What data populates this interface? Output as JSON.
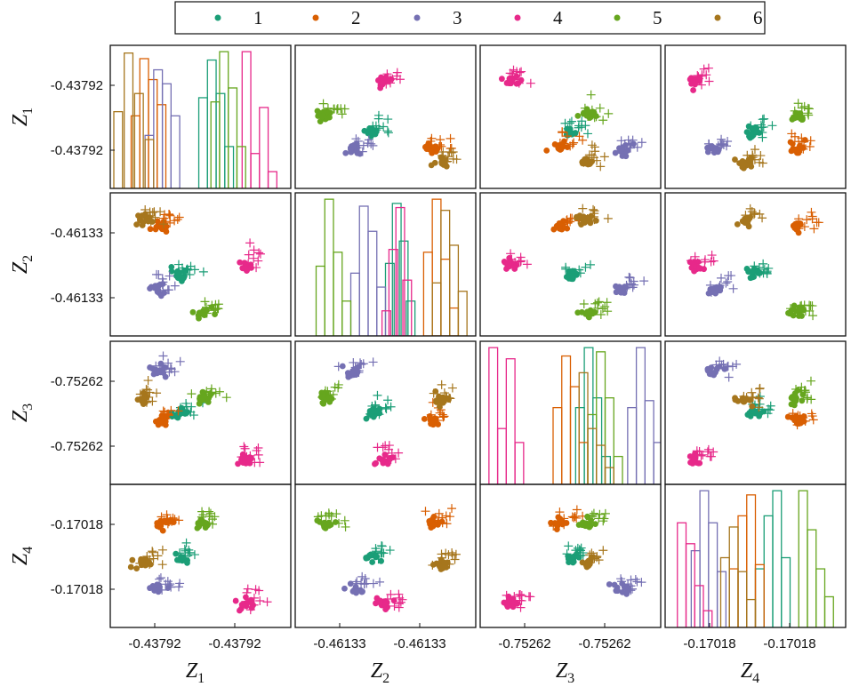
{
  "chart_data": {
    "type": "scatter",
    "title": "",
    "legend": {
      "placement": "top-center",
      "entries": [
        {
          "label": "1",
          "color": "#1b9e77"
        },
        {
          "label": "2",
          "color": "#d95f02"
        },
        {
          "label": "3",
          "color": "#7570b3"
        },
        {
          "label": "4",
          "color": "#e7298a"
        },
        {
          "label": "5",
          "color": "#66a61e"
        },
        {
          "label": "6",
          "color": "#a6761d"
        }
      ]
    },
    "variables": [
      {
        "symbol": "Z",
        "subscript": "1",
        "ticks": [
          "-0.43792",
          "-0.43792"
        ]
      },
      {
        "symbol": "Z",
        "subscript": "2",
        "ticks": [
          "-0.46133",
          "-0.46133"
        ]
      },
      {
        "symbol": "Z",
        "subscript": "3",
        "ticks": [
          "-0.75262",
          "-0.75262"
        ]
      },
      {
        "symbol": "Z",
        "subscript": "4",
        "ticks": [
          "-0.17018",
          "-0.17018"
        ]
      }
    ],
    "matrix": "4x4 pair plot; diagonal = per-group histograms, off-diagonal = scatter (dots = fitted, crosses = samples)",
    "cluster_centers": {
      "1": [
        0.38,
        0.43,
        0.52,
        0.5
      ],
      "2": [
        0.25,
        0.85,
        0.45,
        0.8
      ],
      "3": [
        0.23,
        0.3,
        0.88,
        0.23
      ],
      "4": [
        0.83,
        0.5,
        0.1,
        0.1
      ],
      "5": [
        0.53,
        0.1,
        0.65,
        0.8
      ],
      "6": [
        0.12,
        0.9,
        0.63,
        0.45
      ]
    },
    "histograms": [
      {
        "variable": "Z1",
        "groups": [
          {
            "group": "1",
            "bins": [
              [
                0.49,
                0.65
              ],
              [
                0.54,
                0.92
              ],
              [
                0.59,
                0.68
              ],
              [
                0.64,
                0.3
              ]
            ]
          },
          {
            "group": "2",
            "bins": [
              [
                0.1,
                0.52
              ],
              [
                0.15,
                0.93
              ],
              [
                0.2,
                0.78
              ],
              [
                0.25,
                0.6
              ]
            ]
          },
          {
            "group": "3",
            "bins": [
              [
                0.18,
                0.38
              ],
              [
                0.23,
                0.85
              ],
              [
                0.28,
                0.75
              ],
              [
                0.33,
                0.52
              ]
            ]
          },
          {
            "group": "4",
            "bins": [
              [
                0.74,
                0.98
              ],
              [
                0.79,
                0.25
              ],
              [
                0.84,
                0.58
              ],
              [
                0.89,
                0.12
              ]
            ]
          },
          {
            "group": "5",
            "bins": [
              [
                0.56,
                0.62
              ],
              [
                0.61,
                0.98
              ],
              [
                0.66,
                0.72
              ],
              [
                0.71,
                0.3
              ]
            ]
          },
          {
            "group": "6",
            "bins": [
              [
                0.0,
                0.55
              ],
              [
                0.06,
                0.97
              ],
              [
                0.12,
                0.68
              ],
              [
                0.18,
                0.35
              ]
            ]
          }
        ]
      },
      {
        "variable": "Z2",
        "groups": [
          {
            "group": "1",
            "bins": [
              [
                0.5,
                0.52
              ],
              [
                0.54,
                0.95
              ],
              [
                0.58,
                0.68
              ],
              [
                0.62,
                0.25
              ]
            ]
          },
          {
            "group": "2",
            "bins": [
              [
                0.72,
                0.6
              ],
              [
                0.77,
                0.98
              ],
              [
                0.82,
                0.55
              ],
              [
                0.87,
                0.2
              ]
            ]
          },
          {
            "group": "3",
            "bins": [
              [
                0.3,
                0.45
              ],
              [
                0.35,
                0.93
              ],
              [
                0.4,
                0.75
              ],
              [
                0.45,
                0.35
              ]
            ]
          },
          {
            "group": "4",
            "bins": [
              [
                0.48,
                0.18
              ],
              [
                0.52,
                0.62
              ],
              [
                0.56,
                0.92
              ],
              [
                0.6,
                0.4
              ]
            ]
          },
          {
            "group": "5",
            "bins": [
              [
                0.1,
                0.5
              ],
              [
                0.15,
                0.98
              ],
              [
                0.2,
                0.6
              ],
              [
                0.25,
                0.25
              ]
            ]
          },
          {
            "group": "6",
            "bins": [
              [
                0.77,
                0.38
              ],
              [
                0.82,
                0.9
              ],
              [
                0.87,
                0.65
              ],
              [
                0.92,
                0.32
              ]
            ]
          }
        ]
      },
      {
        "variable": "Z3",
        "groups": [
          {
            "group": "1",
            "bins": [
              [
                0.53,
                0.55
              ],
              [
                0.58,
                0.98
              ],
              [
                0.63,
                0.62
              ],
              [
                0.68,
                0.2
              ]
            ]
          },
          {
            "group": "2",
            "bins": [
              [
                0.4,
                0.55
              ],
              [
                0.45,
                0.92
              ],
              [
                0.5,
                0.7
              ],
              [
                0.55,
                0.3
              ]
            ]
          },
          {
            "group": "3",
            "bins": [
              [
                0.83,
                0.55
              ],
              [
                0.88,
                0.98
              ],
              [
                0.93,
                0.6
              ],
              [
                0.98,
                0.3
              ]
            ]
          },
          {
            "group": "4",
            "bins": [
              [
                0.03,
                0.98
              ],
              [
                0.08,
                0.4
              ],
              [
                0.13,
                0.9
              ],
              [
                0.18,
                0.3
              ]
            ]
          },
          {
            "group": "5",
            "bins": [
              [
                0.6,
                0.5
              ],
              [
                0.65,
                0.95
              ],
              [
                0.7,
                0.62
              ],
              [
                0.75,
                0.2
              ]
            ]
          },
          {
            "group": "6",
            "bins": [
              [
                0.55,
                0.8
              ],
              [
                0.6,
                0.4
              ],
              [
                0.65,
                0.28
              ],
              [
                0.7,
                0.12
              ]
            ]
          }
        ]
      },
      {
        "variable": "Z4",
        "groups": [
          {
            "group": "1",
            "bins": [
              [
                0.5,
                0.42
              ],
              [
                0.55,
                0.8
              ],
              [
                0.6,
                0.98
              ],
              [
                0.65,
                0.5
              ]
            ]
          },
          {
            "group": "2",
            "bins": [
              [
                0.35,
                0.42
              ],
              [
                0.4,
                0.8
              ],
              [
                0.45,
                0.95
              ],
              [
                0.5,
                0.45
              ]
            ]
          },
          {
            "group": "3",
            "bins": [
              [
                0.13,
                0.55
              ],
              [
                0.18,
                0.98
              ],
              [
                0.23,
                0.75
              ],
              [
                0.28,
                0.4
              ]
            ]
          },
          {
            "group": "4",
            "bins": [
              [
                0.05,
                0.75
              ],
              [
                0.1,
                0.6
              ],
              [
                0.15,
                0.3
              ],
              [
                0.2,
                0.12
              ]
            ]
          },
          {
            "group": "5",
            "bins": [
              [
                0.75,
                0.98
              ],
              [
                0.8,
                0.7
              ],
              [
                0.85,
                0.42
              ],
              [
                0.9,
                0.22
              ]
            ]
          },
          {
            "group": "6",
            "bins": [
              [
                0.3,
                0.5
              ],
              [
                0.35,
                0.72
              ],
              [
                0.4,
                0.4
              ],
              [
                0.45,
                0.2
              ]
            ]
          }
        ]
      }
    ]
  }
}
